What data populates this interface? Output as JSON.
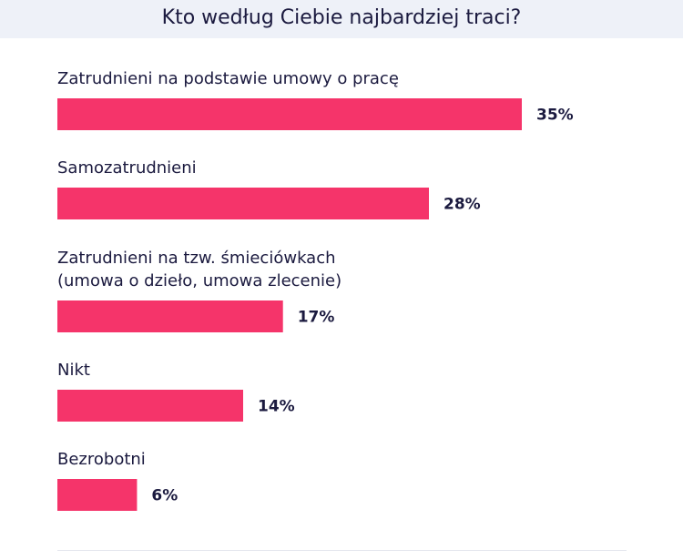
{
  "chart_data": {
    "type": "bar",
    "orientation": "horizontal",
    "title": "Kto według Ciebie najbardziej traci?",
    "value_suffix": "%",
    "bar_color": "#f5346a",
    "header_color": "#eef1f8",
    "text_color": "#1b1a3f",
    "categories": [
      [
        "Zatrudnieni na podstawie umowy o pracę"
      ],
      [
        "Samozatrudnieni"
      ],
      [
        "Zatrudnieni na tzw. śmieciówkach",
        "(umowa o dzieło, umowa zlecenie)"
      ],
      [
        "Nikt"
      ],
      [
        "Bezrobotni"
      ]
    ],
    "values": [
      35,
      28,
      17,
      14,
      6
    ],
    "value_labels": [
      "35%",
      "28%",
      "17%",
      "14%",
      "6%"
    ],
    "xlim": [
      0,
      35
    ],
    "grid": false,
    "legend": "none"
  }
}
